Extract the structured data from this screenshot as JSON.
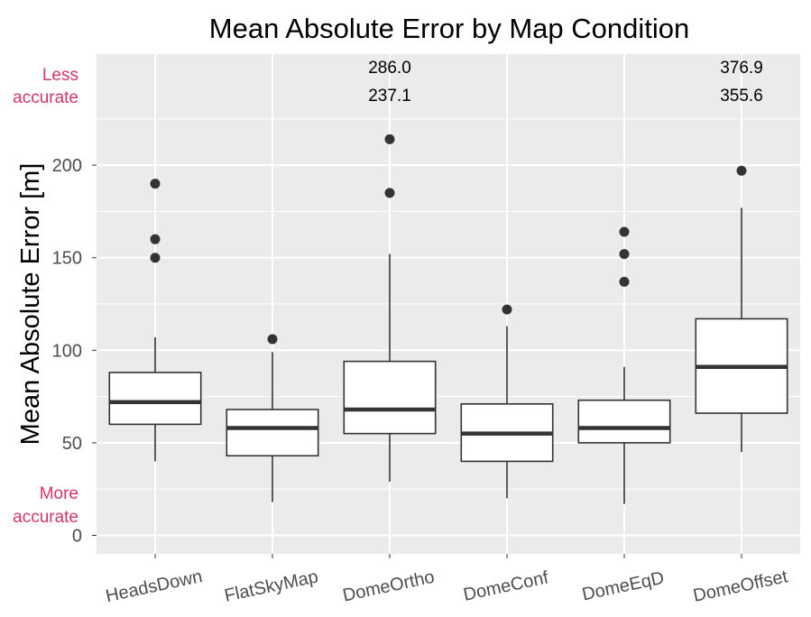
{
  "chart_data": {
    "type": "boxplot",
    "title": "Mean Absolute Error by Map Condition",
    "xlabel": "",
    "ylabel": "Mean Absolute Error [m]",
    "ylim": [
      -10,
      260
    ],
    "yticks": [
      0,
      50,
      100,
      150,
      200
    ],
    "grid": true,
    "annotations": {
      "top": [
        "Less",
        "accurate"
      ],
      "bottom": [
        "More",
        "accurate"
      ],
      "color": "#d6336c"
    },
    "categories": [
      "HeadsDown",
      "FlatSkyMap",
      "DomeOrtho",
      "DomeConf",
      "DomeEqD",
      "DomeOffset"
    ],
    "boxes": [
      {
        "name": "HeadsDown",
        "whisker_low": 40,
        "q1": 60,
        "median": 72,
        "q3": 88,
        "whisker_high": 107,
        "outliers": [
          150,
          160,
          190
        ],
        "offscale_labels": []
      },
      {
        "name": "FlatSkyMap",
        "whisker_low": 18,
        "q1": 43,
        "median": 58,
        "q3": 68,
        "whisker_high": 99,
        "outliers": [
          106
        ],
        "offscale_labels": []
      },
      {
        "name": "DomeOrtho",
        "whisker_low": 29,
        "q1": 55,
        "median": 68,
        "q3": 94,
        "whisker_high": 152,
        "outliers": [
          185,
          214
        ],
        "offscale_labels": [
          "286.0",
          "237.1"
        ]
      },
      {
        "name": "DomeConf",
        "whisker_low": 20,
        "q1": 40,
        "median": 55,
        "q3": 71,
        "whisker_high": 113,
        "outliers": [
          122
        ],
        "offscale_labels": []
      },
      {
        "name": "DomeEqD",
        "whisker_low": 17,
        "q1": 50,
        "median": 58,
        "q3": 73,
        "whisker_high": 91,
        "outliers": [
          137,
          152,
          164
        ],
        "offscale_labels": []
      },
      {
        "name": "DomeOffset",
        "whisker_low": 45,
        "q1": 66,
        "median": 91,
        "q3": 117,
        "whisker_high": 177,
        "outliers": [
          197
        ],
        "offscale_labels": [
          "376.9",
          "355.6"
        ]
      }
    ]
  }
}
